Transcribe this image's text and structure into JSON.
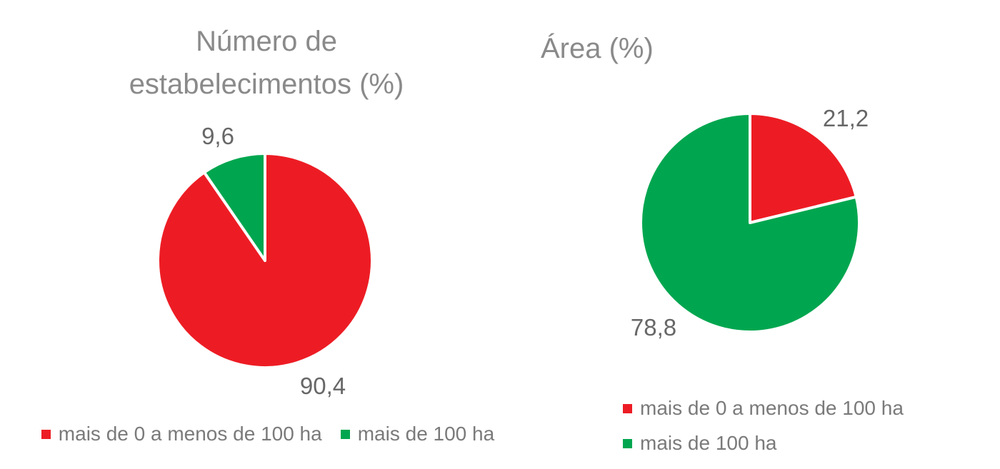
{
  "colors": {
    "red": "#ED1C24",
    "green": "#00A64F",
    "title_gray": "#8A8A8A",
    "label_gray": "#676767",
    "legend_gray": "#7A7A7A",
    "background": "#FFFFFF",
    "slice_separator": "#FFFFFF"
  },
  "chart_data": [
    {
      "type": "pie",
      "title": "Número de estabelecimentos (%)",
      "categories": [
        "mais de 0 a menos de 100 ha",
        "mais de 100 ha"
      ],
      "values": [
        90.4,
        9.6
      ],
      "data_labels": [
        "90,4",
        "9,6"
      ],
      "colors": [
        "#ED1C24",
        "#00A64F"
      ],
      "start_angle_deg": 0,
      "direction": "clockwise",
      "legend_position": "bottom-horizontal-centered",
      "grid": false
    },
    {
      "type": "pie",
      "title": "Área (%)",
      "categories": [
        "mais de 0 a menos de 100 ha",
        "mais de 100 ha"
      ],
      "values": [
        21.2,
        78.8
      ],
      "data_labels": [
        "21,2",
        "78,8"
      ],
      "colors": [
        "#ED1C24",
        "#00A64F"
      ],
      "start_angle_deg": 0,
      "direction": "clockwise",
      "legend_position": "bottom-left-stacked",
      "grid": false
    }
  ]
}
